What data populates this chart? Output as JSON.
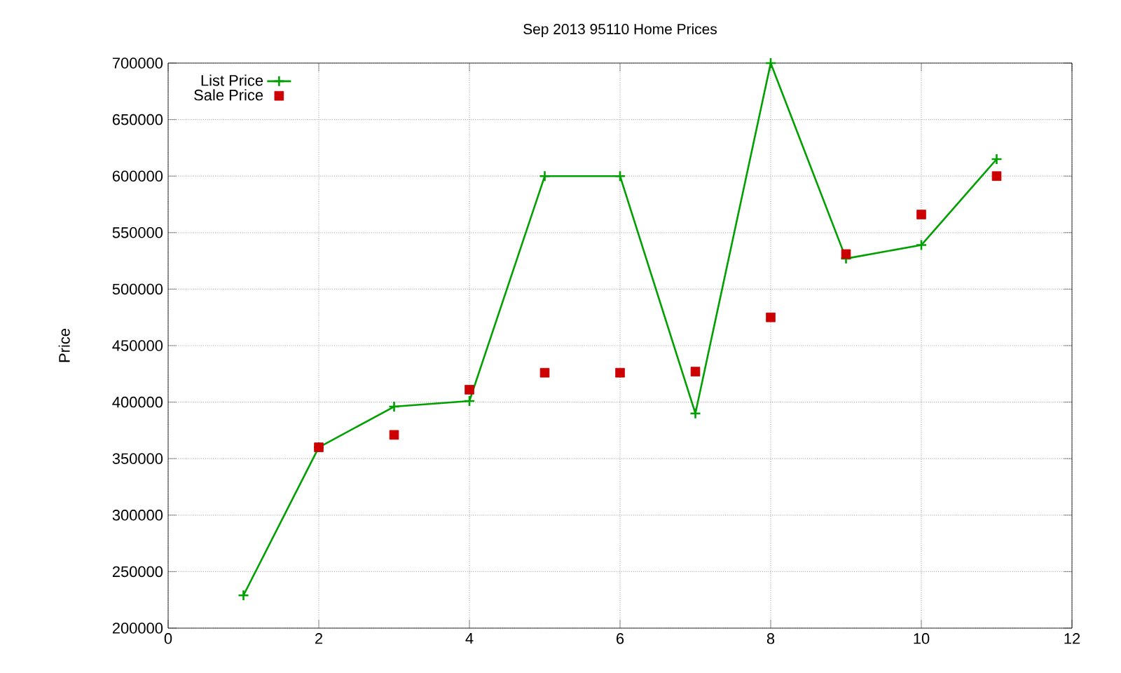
{
  "chart_data": {
    "type": "line",
    "title": "Sep 2013 95110 Home Prices",
    "ylabel": "Price",
    "xlim": [
      0,
      12
    ],
    "xticks": [
      0,
      2,
      4,
      6,
      8,
      10,
      12
    ],
    "ylim": [
      200000,
      700000
    ],
    "yticks": [
      200000,
      250000,
      300000,
      350000,
      400000,
      450000,
      500000,
      550000,
      600000,
      650000,
      700000
    ],
    "grid": true,
    "legend": "top left",
    "series": [
      {
        "name": "List Price",
        "color": "#00a000",
        "marker": "cross",
        "x": [
          1,
          2,
          3,
          4,
          5,
          6,
          7,
          8,
          9,
          10,
          11
        ],
        "values": [
          229000,
          360000,
          396000,
          401000,
          600000,
          600000,
          390000,
          700000,
          527000,
          539000,
          615000
        ]
      },
      {
        "name": "Sale Price",
        "type": "scatter",
        "color": "#cc0000",
        "marker": "square",
        "x": [
          2,
          3,
          4,
          5,
          6,
          7,
          8,
          9,
          10,
          11
        ],
        "values": [
          360000,
          371000,
          411000,
          426000,
          426000,
          427000,
          475000,
          531000,
          566000,
          600000
        ]
      }
    ]
  }
}
